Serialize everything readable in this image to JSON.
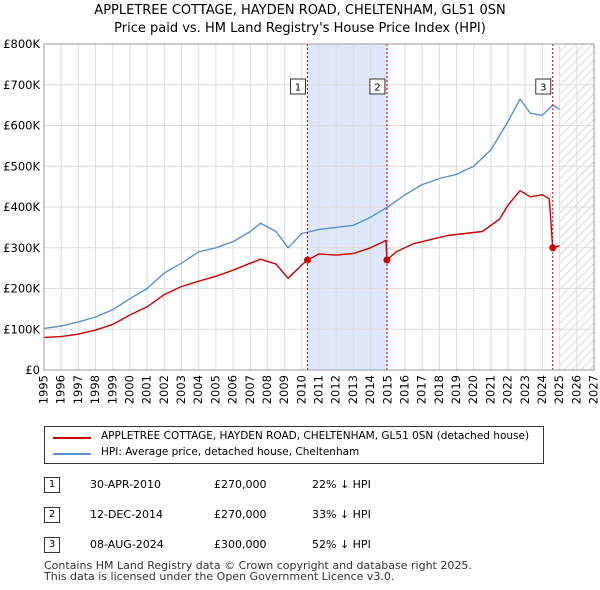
{
  "header": {
    "title": "APPLETREE COTTAGE, HAYDEN ROAD, CHELTENHAM, GL51 0SN",
    "subtitle": "Price paid vs. HM Land Registry's House Price Index (HPI)"
  },
  "colors": {
    "property": "#cc0000",
    "hpi": "#5b8fcf",
    "shade": "#dfe8fb"
  },
  "legend": {
    "property": "APPLETREE COTTAGE, HAYDEN ROAD, CHELTENHAM, GL51 0SN (detached house)",
    "hpi": "HPI: Average price, detached house, Cheltenham"
  },
  "transactions": [
    {
      "num": "1",
      "date": "30-APR-2010",
      "price": "£270,000",
      "delta": "22% ↓ HPI"
    },
    {
      "num": "2",
      "date": "12-DEC-2014",
      "price": "£270,000",
      "delta": "33% ↓ HPI"
    },
    {
      "num": "3",
      "date": "08-AUG-2024",
      "price": "£300,000",
      "delta": "52% ↓ HPI"
    }
  ],
  "footer": {
    "line1": "Contains HM Land Registry data © Crown copyright and database right 2025.",
    "line2": "This data is licensed under the Open Government Licence v3.0."
  },
  "chart_data": {
    "type": "line",
    "xlim": [
      1995,
      2027
    ],
    "ylim": [
      0,
      800000
    ],
    "y_ticks": [
      0,
      100000,
      200000,
      300000,
      400000,
      500000,
      600000,
      700000,
      800000
    ],
    "y_tick_labels": [
      "£0",
      "£100K",
      "£200K",
      "£300K",
      "£400K",
      "£500K",
      "£600K",
      "£700K",
      "£800K"
    ],
    "x_ticks": [
      1995,
      1996,
      1997,
      1998,
      1999,
      2000,
      2001,
      2002,
      2003,
      2004,
      2005,
      2006,
      2007,
      2008,
      2009,
      2010,
      2011,
      2012,
      2013,
      2014,
      2015,
      2016,
      2017,
      2018,
      2019,
      2020,
      2021,
      2022,
      2023,
      2024,
      2025,
      2026,
      2027
    ],
    "grid": true,
    "shaded_span": [
      2010.33,
      2014.95
    ],
    "future_hatch_from": 2025.0,
    "sale_markers": [
      {
        "label": "1",
        "x": 2010.33,
        "y": 270000
      },
      {
        "label": "2",
        "x": 2014.95,
        "y": 270000
      },
      {
        "label": "3",
        "x": 2024.6,
        "y": 300000
      }
    ],
    "series": [
      {
        "name": "APPLETREE COTTAGE, HAYDEN ROAD, CHELTENHAM, GL51 0SN (detached house)",
        "x": [
          1995.0,
          1996.0,
          1997.0,
          1998.0,
          1999.0,
          2000.0,
          2001.0,
          2002.0,
          2003.0,
          2004.0,
          2005.0,
          2006.0,
          2007.0,
          2007.6,
          2008.5,
          2009.2,
          2010.0,
          2010.33,
          2011.0,
          2012.0,
          2013.0,
          2014.0,
          2014.9,
          2014.95,
          2015.5,
          2016.5,
          2017.5,
          2018.5,
          2019.5,
          2020.5,
          2021.5,
          2022.0,
          2022.7,
          2023.3,
          2024.0,
          2024.4,
          2024.6,
          2025.0
        ],
        "y": [
          80000,
          82000,
          88000,
          98000,
          112000,
          135000,
          155000,
          185000,
          205000,
          218000,
          230000,
          245000,
          262000,
          272000,
          260000,
          225000,
          258000,
          270000,
          285000,
          282000,
          286000,
          300000,
          318000,
          270000,
          290000,
          310000,
          320000,
          330000,
          335000,
          340000,
          370000,
          405000,
          440000,
          425000,
          430000,
          420000,
          300000,
          305000
        ]
      },
      {
        "name": "HPI: Average price, detached house, Cheltenham",
        "x": [
          1995.0,
          1996.0,
          1997.0,
          1998.0,
          1999.0,
          2000.0,
          2001.0,
          2002.0,
          2003.0,
          2004.0,
          2005.0,
          2006.0,
          2007.0,
          2007.6,
          2008.5,
          2009.2,
          2010.0,
          2011.0,
          2012.0,
          2013.0,
          2014.0,
          2015.0,
          2016.0,
          2017.0,
          2018.0,
          2019.0,
          2020.0,
          2021.0,
          2022.0,
          2022.7,
          2023.3,
          2024.0,
          2024.6,
          2025.0
        ],
        "y": [
          102000,
          108000,
          118000,
          130000,
          148000,
          175000,
          200000,
          238000,
          262000,
          290000,
          300000,
          315000,
          340000,
          360000,
          340000,
          300000,
          335000,
          345000,
          350000,
          355000,
          375000,
          400000,
          430000,
          455000,
          470000,
          480000,
          500000,
          540000,
          610000,
          665000,
          630000,
          625000,
          650000,
          640000
        ]
      }
    ]
  }
}
